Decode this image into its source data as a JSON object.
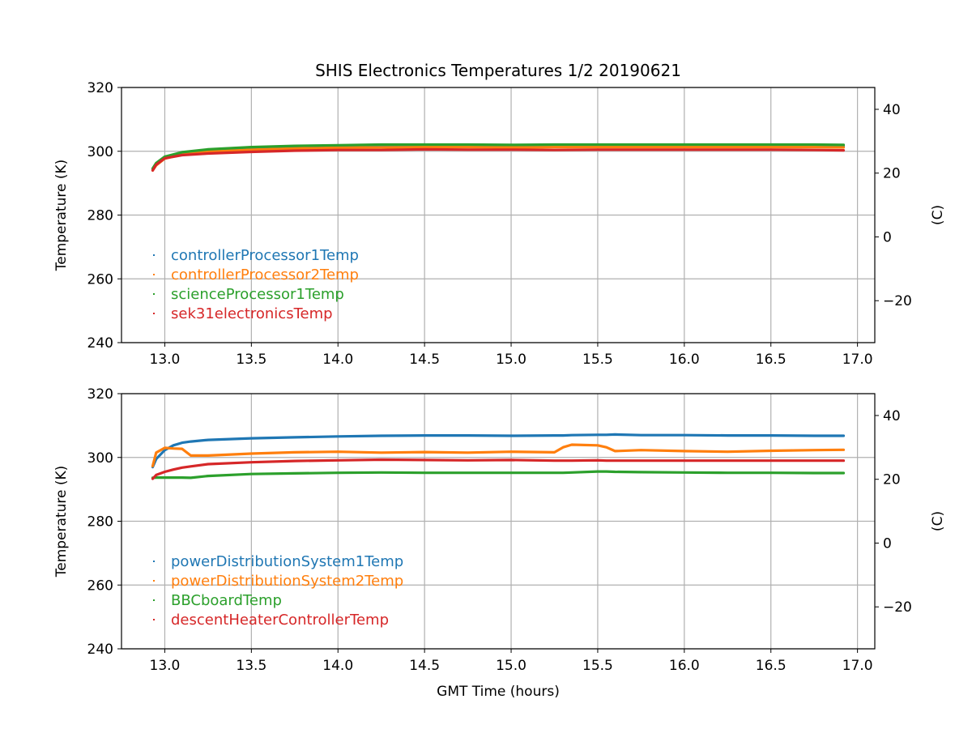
{
  "title": "SHIS Electronics Temperatures 1/2 20190621",
  "chart_data": [
    {
      "type": "scatter",
      "title": "SHIS Electronics Temperatures 1/2 20190621",
      "xlabel": "",
      "ylabel": "Temperature (K)",
      "y2label": "(C)",
      "xlim": [
        12.75,
        17.1
      ],
      "ylim": [
        240,
        320
      ],
      "y2lim": [
        -33.15,
        46.85
      ],
      "xticks": [
        "13.0",
        "13.5",
        "14.0",
        "14.5",
        "15.0",
        "15.5",
        "16.0",
        "16.5",
        "17.0"
      ],
      "yticks": [
        "240",
        "260",
        "280",
        "300",
        "320"
      ],
      "y2ticks": [
        "−20",
        "0",
        "20",
        "40"
      ],
      "grid": true,
      "legend_position": "lower-left",
      "x": [
        12.93,
        12.95,
        13.0,
        13.1,
        13.25,
        13.5,
        13.75,
        14.0,
        14.25,
        14.5,
        14.75,
        15.0,
        15.25,
        15.5,
        15.75,
        16.0,
        16.25,
        16.5,
        16.75,
        16.92
      ],
      "series": [
        {
          "name": "controllerProcessor1Temp",
          "color": "#1f77b4",
          "values": [
            294.3,
            296.0,
            298.0,
            299.4,
            300.3,
            301.0,
            301.4,
            301.6,
            301.8,
            301.8,
            301.8,
            301.7,
            301.8,
            301.8,
            301.8,
            301.8,
            301.8,
            301.8,
            301.8,
            301.7
          ]
        },
        {
          "name": "controllerProcessor2Temp",
          "color": "#ff7f0e",
          "values": [
            294.0,
            295.6,
            297.7,
            299.1,
            299.9,
            300.5,
            300.9,
            301.1,
            301.2,
            301.3,
            301.3,
            301.2,
            301.3,
            301.3,
            301.3,
            301.3,
            301.3,
            301.3,
            301.3,
            301.2
          ]
        },
        {
          "name": "scienceProcessor1Temp",
          "color": "#2ca02c",
          "values": [
            294.6,
            296.3,
            298.3,
            299.7,
            300.6,
            301.3,
            301.7,
            301.9,
            302.1,
            302.1,
            302.1,
            302.0,
            302.1,
            302.1,
            302.1,
            302.1,
            302.1,
            302.1,
            302.1,
            302.0
          ]
        },
        {
          "name": "sek31electronicsTemp",
          "color": "#d62728",
          "values": [
            294.0,
            295.8,
            297.8,
            298.8,
            299.3,
            299.8,
            300.2,
            300.4,
            300.4,
            300.6,
            300.5,
            300.5,
            300.4,
            300.5,
            300.5,
            300.5,
            300.5,
            300.5,
            300.4,
            300.3
          ]
        }
      ]
    },
    {
      "type": "scatter",
      "title": "",
      "xlabel": "GMT Time (hours)",
      "ylabel": "Temperature (K)",
      "y2label": "(C)",
      "xlim": [
        12.75,
        17.1
      ],
      "ylim": [
        240,
        320
      ],
      "y2lim": [
        -33.15,
        46.85
      ],
      "xticks": [
        "13.0",
        "13.5",
        "14.0",
        "14.5",
        "15.0",
        "15.5",
        "16.0",
        "16.5",
        "17.0"
      ],
      "yticks": [
        "240",
        "260",
        "280",
        "300",
        "320"
      ],
      "y2ticks": [
        "−20",
        "0",
        "20",
        "40"
      ],
      "grid": true,
      "legend_position": "lower-left",
      "x": [
        12.93,
        12.95,
        13.0,
        13.05,
        13.1,
        13.15,
        13.25,
        13.5,
        13.75,
        14.0,
        14.25,
        14.5,
        14.75,
        15.0,
        15.25,
        15.3,
        15.35,
        15.5,
        15.55,
        15.6,
        15.75,
        16.0,
        16.25,
        16.5,
        16.75,
        16.92
      ],
      "series": [
        {
          "name": "powerDistributionSystem1Temp",
          "color": "#1f77b4",
          "values": [
            297.0,
            299.5,
            302.3,
            303.8,
            304.6,
            305.0,
            305.5,
            306.0,
            306.3,
            306.6,
            306.8,
            306.9,
            306.9,
            306.8,
            306.9,
            306.9,
            307.0,
            307.1,
            307.1,
            307.2,
            307.0,
            307.0,
            306.9,
            306.9,
            306.8,
            306.8
          ]
        },
        {
          "name": "powerDistributionSystem2Temp",
          "color": "#ff7f0e",
          "values": [
            297.3,
            301.5,
            303.0,
            302.8,
            302.7,
            300.6,
            300.6,
            301.2,
            301.6,
            301.8,
            301.5,
            301.7,
            301.5,
            301.8,
            301.6,
            303.2,
            304.0,
            303.8,
            303.2,
            302.0,
            302.3,
            302.0,
            301.8,
            302.1,
            302.3,
            302.4
          ]
        },
        {
          "name": "BBCboardTemp",
          "color": "#2ca02c",
          "values": [
            293.6,
            293.7,
            293.7,
            293.7,
            293.7,
            293.6,
            294.2,
            294.8,
            295.0,
            295.2,
            295.3,
            295.2,
            295.2,
            295.2,
            295.2,
            295.2,
            295.3,
            295.6,
            295.6,
            295.5,
            295.4,
            295.3,
            295.2,
            295.2,
            295.1,
            295.1
          ]
        },
        {
          "name": "descentHeaterControllerTemp",
          "color": "#d62728",
          "values": [
            293.3,
            294.5,
            295.5,
            296.2,
            296.8,
            297.2,
            297.9,
            298.5,
            298.9,
            299.1,
            299.3,
            299.2,
            299.1,
            299.2,
            299.0,
            299.0,
            299.0,
            299.1,
            299.0,
            299.0,
            299.0,
            299.0,
            299.0,
            299.0,
            299.0,
            299.0
          ]
        }
      ]
    }
  ]
}
